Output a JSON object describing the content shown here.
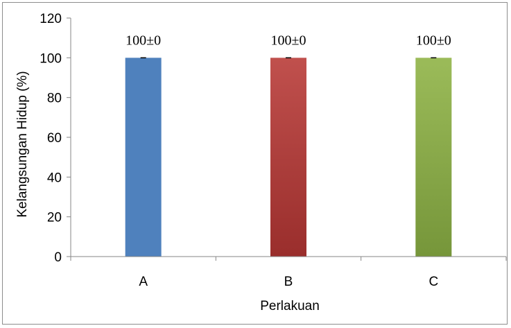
{
  "chart_data": {
    "type": "bar",
    "categories": [
      "A",
      "B",
      "C"
    ],
    "values": [
      100,
      100,
      100
    ],
    "errors": [
      0,
      0,
      0
    ],
    "data_labels": [
      "100±0",
      "100±0",
      "100±0"
    ],
    "xlabel": "Perlakuan",
    "ylabel": "Kelangsungan Hidup (%)",
    "ylim": [
      0,
      120
    ],
    "yticks": [
      0,
      20,
      40,
      60,
      80,
      100,
      120
    ],
    "grid": false,
    "legend": "none",
    "colors": [
      "#4f81bd",
      "#c0504d",
      "#9bbb59"
    ],
    "colors_dark": [
      "#3f6fae",
      "#9a2e2c",
      "#76963a"
    ]
  }
}
